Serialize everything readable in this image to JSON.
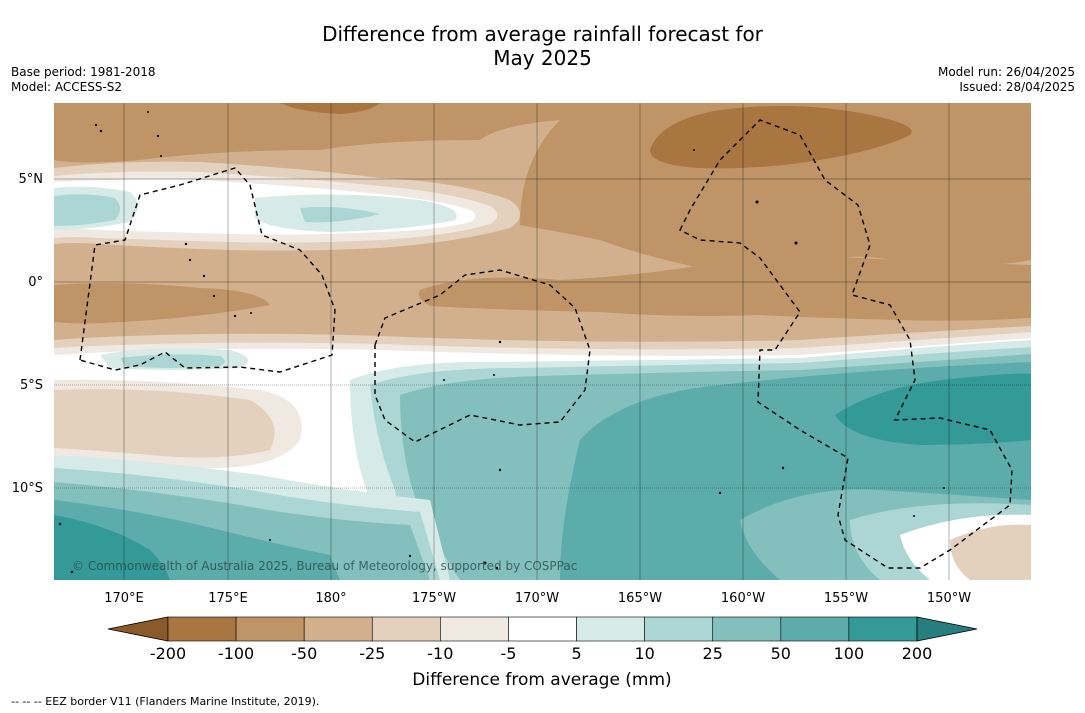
{
  "title_line1": "Difference from average rainfall forecast for",
  "title_line2": "May 2025",
  "base_period": "Base period: 1981-2018",
  "model": "Model: ACCESS-S2",
  "model_run": "Model run: 26/04/2025",
  "issued": "Issued: 28/04/2025",
  "lat_labels": [
    "5°N",
    "0°",
    "5°S",
    "10°S"
  ],
  "lon_labels": [
    "170°E",
    "175°E",
    "180°",
    "175°W",
    "170°W",
    "165°W",
    "160°W",
    "155°W",
    "150°W"
  ],
  "copyright": "© Commonwealth of Australia 2025, Bureau of Meteorology, supported by COSPPac",
  "legend": {
    "ticks": [
      "-200",
      "-100",
      "-50",
      "-25",
      "-10",
      "-5",
      "5",
      "10",
      "25",
      "50",
      "100",
      "200"
    ],
    "colors": [
      "#8a5a2b",
      "#a97540",
      "#bf9466",
      "#d2b08e",
      "#e3d0bd",
      "#f0e9e1",
      "#ffffff",
      "#d6eae8",
      "#abd6d3",
      "#83c0bd",
      "#5cacac",
      "#349a98",
      "#267f7e"
    ],
    "title": "Difference from average (mm)"
  },
  "footer": "--  --  -- EEZ border V11 (Flanders Marine Institute, 2019)."
}
